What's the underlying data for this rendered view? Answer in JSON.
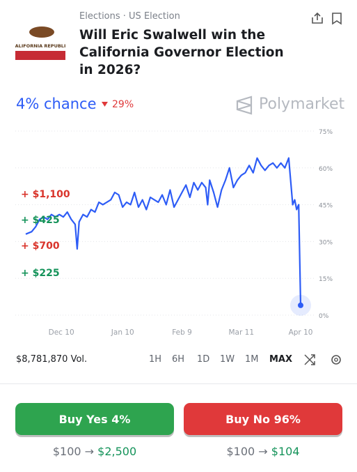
{
  "header": {
    "breadcrumb": "Elections · US Election",
    "title": "Will Eric Swalwell win the California Governor Election in 2026?",
    "flag_text": "CALIFORNIA REPUBLIC"
  },
  "odds": {
    "chance": "4% chance",
    "change": "29%",
    "brand": "Polymarket"
  },
  "trades": [
    {
      "label": "+ $1,100",
      "color": "#d9342b"
    },
    {
      "label": "+ $425",
      "color": "#15935a"
    },
    {
      "label": "+ $700",
      "color": "#d9342b"
    },
    {
      "label": "+ $225",
      "color": "#15935a"
    }
  ],
  "chart_data": {
    "type": "line",
    "color": "#2d5cf6",
    "x": [
      0,
      3,
      5,
      7,
      9,
      11,
      13,
      15,
      17,
      19,
      21,
      23,
      25,
      26,
      27,
      29,
      31,
      33,
      35,
      37,
      39,
      41,
      43,
      45,
      47,
      49,
      51,
      53,
      55,
      57,
      59,
      61,
      63,
      65,
      67,
      69,
      71,
      73,
      75,
      77,
      79,
      81,
      83,
      85,
      87,
      89,
      91,
      92,
      93,
      95,
      97,
      99,
      101,
      103,
      105,
      107,
      109,
      111,
      113,
      115,
      117,
      119,
      121,
      123,
      125,
      127,
      129,
      131,
      133,
      135,
      136,
      137,
      138,
      139
    ],
    "values": [
      33,
      34,
      36,
      39,
      40,
      39,
      41,
      40,
      41,
      40,
      42,
      39,
      37,
      27,
      38,
      41,
      40,
      43,
      42,
      46,
      45,
      46,
      47,
      50,
      49,
      44,
      46,
      45,
      50,
      44,
      47,
      43,
      48,
      47,
      46,
      49,
      45,
      51,
      44,
      47,
      50,
      53,
      48,
      54,
      51,
      54,
      52,
      45,
      55,
      50,
      44,
      51,
      55,
      60,
      52,
      55,
      57,
      58,
      61,
      58,
      64,
      61,
      59,
      61,
      62,
      60,
      62,
      60,
      64,
      45,
      47,
      43,
      45,
      4
    ],
    "xlim": [
      0,
      139
    ],
    "xticks": [
      {
        "value": 18,
        "label": "Dec 10"
      },
      {
        "value": 49,
        "label": "Jan 10"
      },
      {
        "value": 79,
        "label": "Feb 9"
      },
      {
        "value": 109,
        "label": "Mar 11"
      },
      {
        "value": 139,
        "label": "Apr 10"
      }
    ],
    "ylim": [
      0,
      75
    ],
    "yticks": [
      {
        "value": 0,
        "label": "0%"
      },
      {
        "value": 15,
        "label": "15%"
      },
      {
        "value": 30,
        "label": "30%"
      },
      {
        "value": 45,
        "label": "45%"
      },
      {
        "value": 60,
        "label": "60%"
      },
      {
        "value": 75,
        "label": "75%"
      }
    ],
    "grid": true
  },
  "controls": {
    "volume": "$8,781,870 Vol.",
    "ranges": [
      "1H",
      "6H",
      "1D",
      "1W",
      "1M",
      "MAX"
    ],
    "active": "MAX"
  },
  "buttons": [
    {
      "label": "Buy Yes 4%",
      "color": "#2ea44f",
      "payout": {
        "stake": "$100",
        "arrow": "→",
        "return": "$2,500"
      }
    },
    {
      "label": "Buy No 96%",
      "color": "#e0393a",
      "payout": {
        "stake": "$100",
        "arrow": "→",
        "return": "$104"
      }
    }
  ]
}
